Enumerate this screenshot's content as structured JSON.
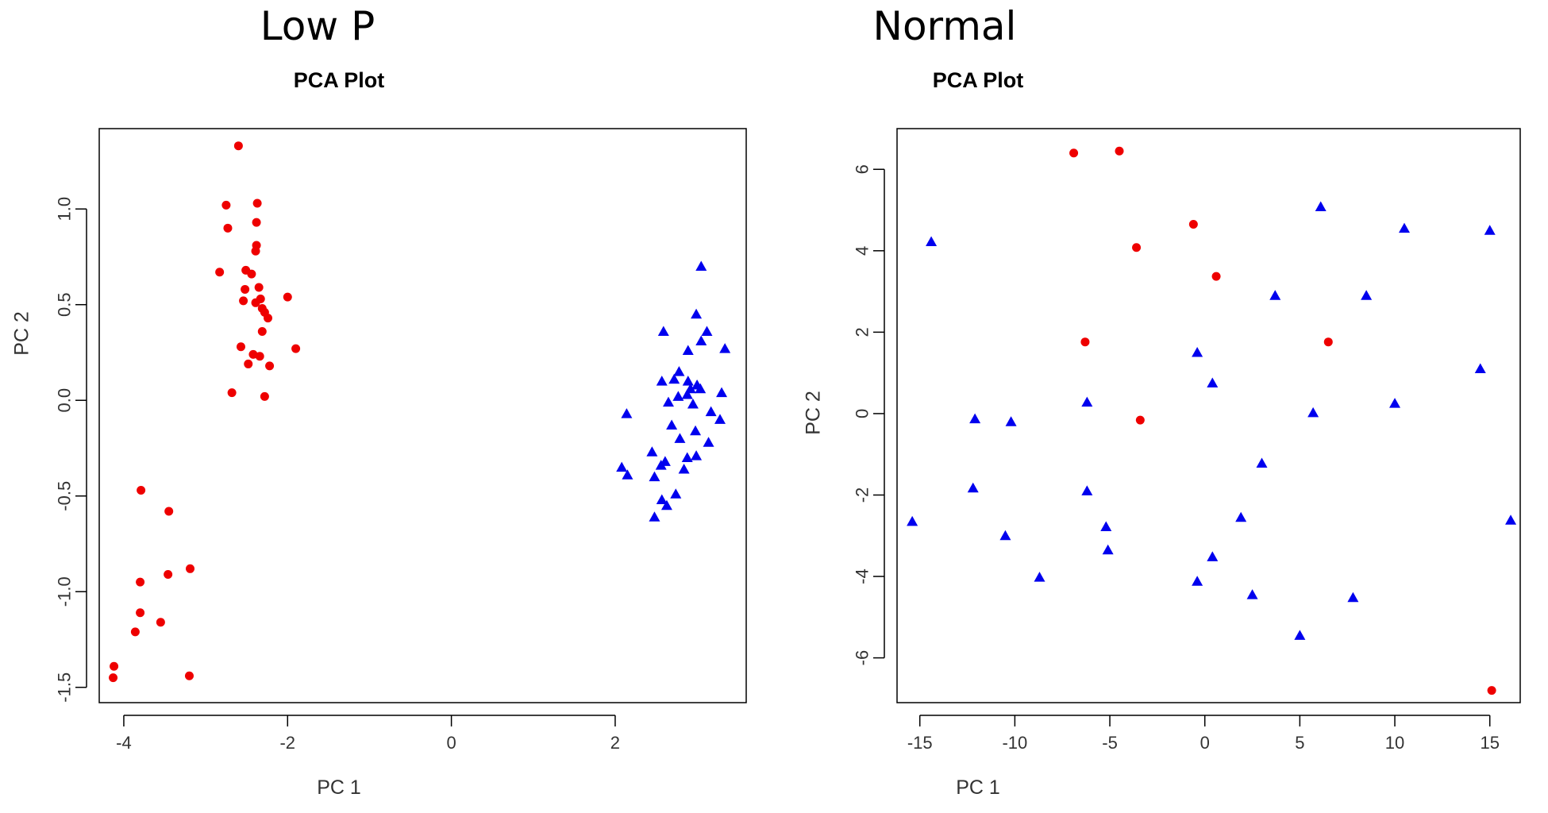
{
  "chart_data": [
    {
      "type": "scatter",
      "heading": "Low P",
      "title": "PCA Plot",
      "xlabel": "PC 1",
      "ylabel": "PC 2",
      "xlim": [
        -4.3,
        3.6
      ],
      "ylim": [
        -1.58,
        1.42
      ],
      "xticks": [
        -4,
        -2,
        0,
        2
      ],
      "yticks": [
        -1.5,
        -1.0,
        -0.5,
        0.0,
        0.5,
        1.0
      ],
      "ytick_labels": [
        "-1.5",
        "-1.0",
        "-0.5",
        "0.0",
        "0.5",
        "1.0"
      ],
      "series": [
        {
          "marker": "circle",
          "color": "#ee0000",
          "points": [
            [
              -2.6,
              1.33
            ],
            [
              -2.75,
              1.02
            ],
            [
              -2.37,
              1.03
            ],
            [
              -2.73,
              0.9
            ],
            [
              -2.38,
              0.93
            ],
            [
              -2.38,
              0.81
            ],
            [
              -2.39,
              0.78
            ],
            [
              -2.83,
              0.67
            ],
            [
              -2.51,
              0.68
            ],
            [
              -2.44,
              0.66
            ],
            [
              -2.52,
              0.58
            ],
            [
              -2.35,
              0.59
            ],
            [
              -2.0,
              0.54
            ],
            [
              -2.54,
              0.52
            ],
            [
              -2.39,
              0.51
            ],
            [
              -2.33,
              0.53
            ],
            [
              -2.31,
              0.48
            ],
            [
              -2.28,
              0.46
            ],
            [
              -2.24,
              0.43
            ],
            [
              -2.31,
              0.36
            ],
            [
              -2.57,
              0.28
            ],
            [
              -1.9,
              0.27
            ],
            [
              -2.42,
              0.24
            ],
            [
              -2.34,
              0.23
            ],
            [
              -2.48,
              0.19
            ],
            [
              -2.22,
              0.18
            ],
            [
              -2.68,
              0.04
            ],
            [
              -2.28,
              0.02
            ],
            [
              -3.79,
              -0.47
            ],
            [
              -3.45,
              -0.58
            ],
            [
              -3.19,
              -0.88
            ],
            [
              -3.46,
              -0.91
            ],
            [
              -3.8,
              -0.95
            ],
            [
              -3.8,
              -1.11
            ],
            [
              -3.55,
              -1.16
            ],
            [
              -3.86,
              -1.21
            ],
            [
              -4.12,
              -1.39
            ],
            [
              -4.13,
              -1.45
            ],
            [
              -3.2,
              -1.44
            ]
          ]
        },
        {
          "marker": "triangle",
          "color": "#0000ee",
          "points": [
            [
              3.05,
              0.7
            ],
            [
              2.99,
              0.45
            ],
            [
              2.59,
              0.36
            ],
            [
              3.12,
              0.36
            ],
            [
              3.05,
              0.31
            ],
            [
              3.34,
              0.27
            ],
            [
              2.89,
              0.26
            ],
            [
              2.78,
              0.15
            ],
            [
              2.72,
              0.11
            ],
            [
              2.57,
              0.1
            ],
            [
              2.89,
              0.1
            ],
            [
              3.0,
              0.08
            ],
            [
              2.92,
              0.06
            ],
            [
              3.04,
              0.06
            ],
            [
              2.88,
              0.03
            ],
            [
              3.3,
              0.04
            ],
            [
              2.77,
              0.02
            ],
            [
              2.65,
              -0.01
            ],
            [
              2.95,
              -0.02
            ],
            [
              3.17,
              -0.06
            ],
            [
              2.14,
              -0.07
            ],
            [
              3.28,
              -0.1
            ],
            [
              2.69,
              -0.13
            ],
            [
              2.98,
              -0.16
            ],
            [
              2.79,
              -0.2
            ],
            [
              3.14,
              -0.22
            ],
            [
              2.45,
              -0.27
            ],
            [
              2.88,
              -0.3
            ],
            [
              2.61,
              -0.32
            ],
            [
              2.99,
              -0.29
            ],
            [
              2.08,
              -0.35
            ],
            [
              2.56,
              -0.34
            ],
            [
              2.15,
              -0.39
            ],
            [
              2.84,
              -0.36
            ],
            [
              2.48,
              -0.4
            ],
            [
              2.74,
              -0.49
            ],
            [
              2.57,
              -0.52
            ],
            [
              2.63,
              -0.55
            ],
            [
              2.48,
              -0.61
            ]
          ]
        }
      ]
    },
    {
      "type": "scatter",
      "heading": "Normal",
      "title": "PCA Plot",
      "xlabel": "PC 1",
      "ylabel": "PC 2",
      "xlim": [
        -16.2,
        16.6
      ],
      "ylim": [
        -7.1,
        7.0
      ],
      "xticks": [
        -15,
        -10,
        -5,
        0,
        5,
        10,
        15
      ],
      "yticks": [
        -6,
        -4,
        -2,
        0,
        2,
        4,
        6
      ],
      "ytick_labels": [
        "-6",
        "-4",
        "-2",
        "0",
        "2",
        "4",
        "6"
      ],
      "series": [
        {
          "marker": "circle",
          "color": "#ee0000",
          "points": [
            [
              -6.9,
              6.4
            ],
            [
              -4.5,
              6.45
            ],
            [
              -0.6,
              4.65
            ],
            [
              -3.6,
              4.08
            ],
            [
              0.6,
              3.37
            ],
            [
              -6.3,
              1.76
            ],
            [
              6.5,
              1.76
            ],
            [
              -3.4,
              -0.16
            ],
            [
              15.1,
              -6.8
            ]
          ]
        },
        {
          "marker": "triangle",
          "color": "#0000ee",
          "points": [
            [
              6.1,
              5.08
            ],
            [
              10.5,
              4.55
            ],
            [
              15.0,
              4.5
            ],
            [
              -14.4,
              4.22
            ],
            [
              3.7,
              2.9
            ],
            [
              8.5,
              2.9
            ],
            [
              -0.4,
              1.5
            ],
            [
              14.5,
              1.1
            ],
            [
              0.4,
              0.75
            ],
            [
              -6.2,
              0.28
            ],
            [
              10.0,
              0.25
            ],
            [
              5.7,
              0.02
            ],
            [
              -12.1,
              -0.13
            ],
            [
              -10.2,
              -0.2
            ],
            [
              3.0,
              -1.22
            ],
            [
              -12.2,
              -1.83
            ],
            [
              -6.2,
              -1.9
            ],
            [
              1.9,
              -2.55
            ],
            [
              16.1,
              -2.62
            ],
            [
              -15.4,
              -2.65
            ],
            [
              -5.2,
              -2.78
            ],
            [
              -10.5,
              -3.0
            ],
            [
              -5.1,
              -3.35
            ],
            [
              0.4,
              -3.52
            ],
            [
              -8.7,
              -4.02
            ],
            [
              -0.4,
              -4.12
            ],
            [
              2.5,
              -4.45
            ],
            [
              7.8,
              -4.52
            ],
            [
              5.0,
              -5.45
            ]
          ]
        }
      ]
    }
  ]
}
